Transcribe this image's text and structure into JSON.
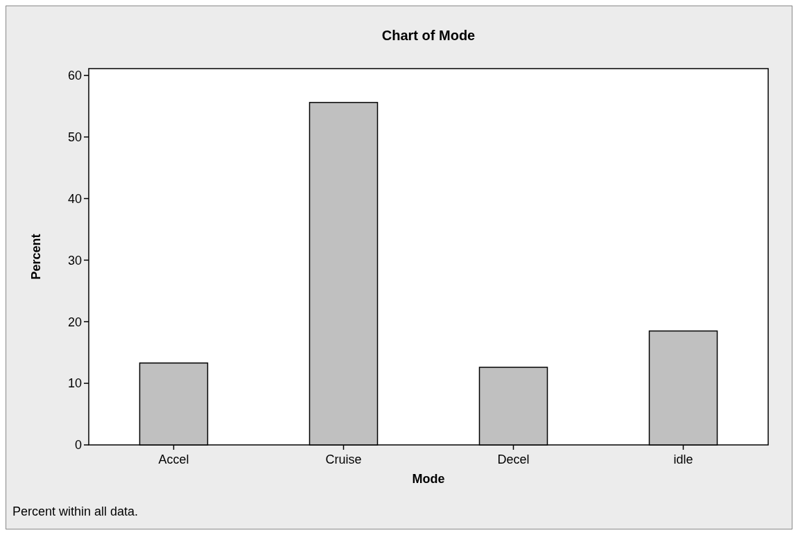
{
  "chart_data": {
    "type": "bar",
    "title": "Chart of Mode",
    "xlabel": "Mode",
    "ylabel": "Percent",
    "categories": [
      "Accel",
      "Cruise",
      "Decel",
      "idle"
    ],
    "values": [
      13.3,
      55.6,
      12.6,
      18.5
    ],
    "color": "#c0c0c0",
    "ylim": [
      0,
      61.1
    ],
    "yticks": [
      0,
      10,
      20,
      30,
      40,
      50,
      60
    ],
    "annotations": [
      "Percent within all data."
    ]
  }
}
